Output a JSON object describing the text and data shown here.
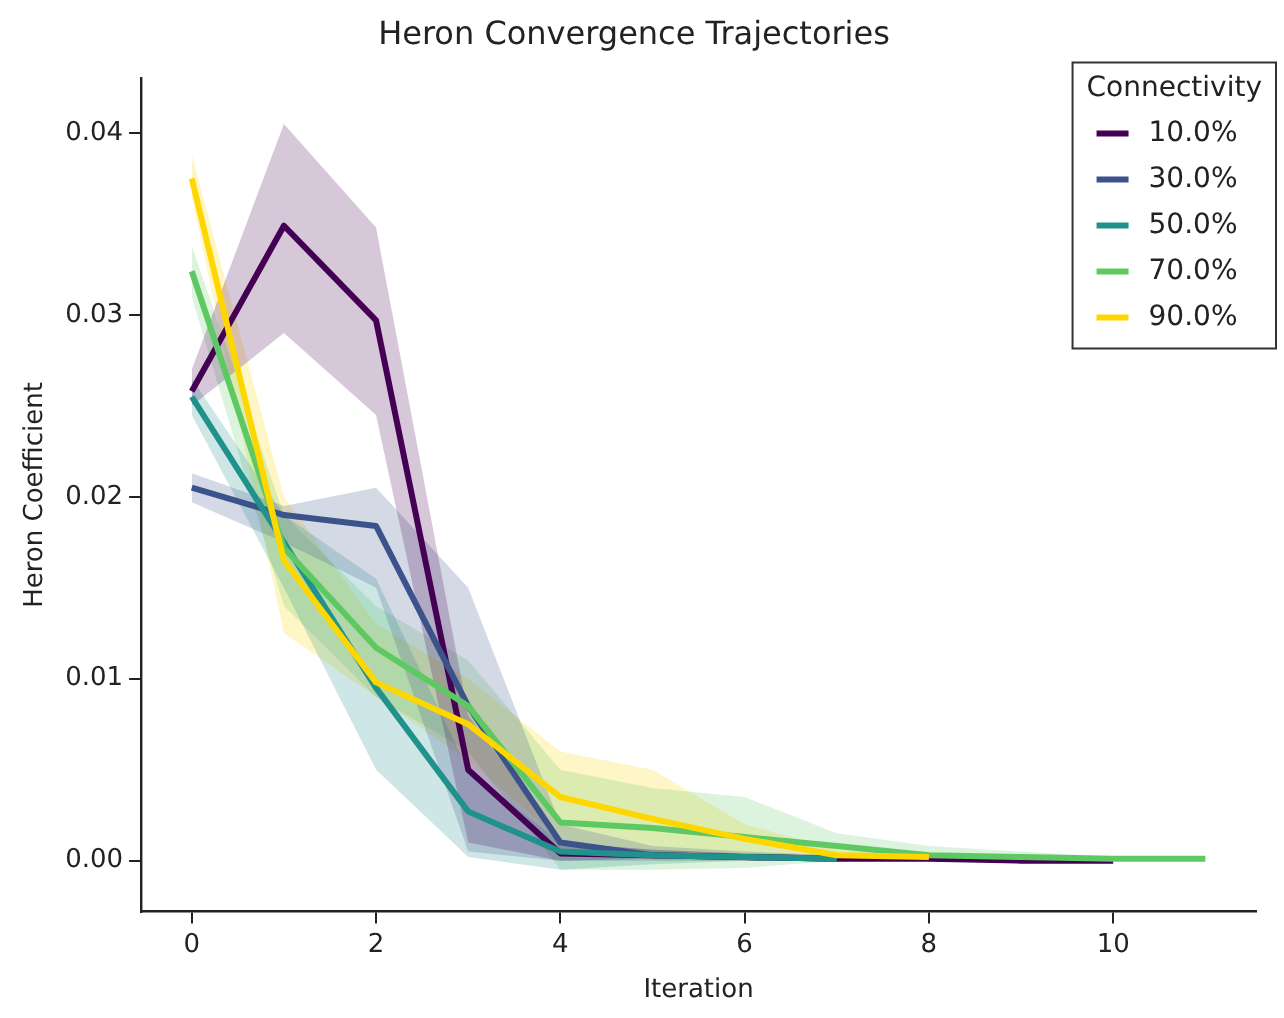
{
  "chart_data": {
    "type": "line",
    "title": "Heron Convergence Trajectories",
    "xlabel": "Iteration",
    "ylabel": "Heron Coefficient",
    "legend_title": "Connectivity",
    "legend": "top right",
    "grid": false,
    "marker": "none",
    "line_style": "solid",
    "xlim": [
      -0.55,
      11.55
    ],
    "xticks": [
      0,
      2,
      4,
      6,
      8,
      10
    ],
    "ylim": [
      -0.0028,
      0.043
    ],
    "yticks": [
      {
        "value": 0,
        "label": "0.00"
      },
      {
        "value": 0.01,
        "label": "0.01"
      },
      {
        "value": 0.02,
        "label": "0.02"
      },
      {
        "value": 0.03,
        "label": "0.03"
      },
      {
        "value": 0.04,
        "label": "0.04"
      }
    ],
    "series": [
      {
        "name": "10.0%",
        "color": "#440154",
        "x": [
          0,
          1,
          2,
          3,
          4,
          5,
          6,
          7,
          8,
          9,
          10
        ],
        "values": [
          0.0258,
          0.0349,
          0.0297,
          0.005,
          0.0004,
          0.0003,
          null,
          0.0001,
          0.0001,
          0,
          0
        ],
        "lower": [
          0.025,
          0.029,
          0.0245,
          0.001,
          0,
          0.0001,
          0.0001,
          0,
          0,
          0,
          0
        ],
        "upper": [
          0.027,
          0.0405,
          0.0348,
          0.008,
          0.001,
          0.0006,
          0.0004,
          0.0003,
          0.0002,
          0.0001,
          0.0001
        ]
      },
      {
        "name": "30.0%",
        "color": "#3b528b",
        "x": [
          0,
          1,
          2,
          3,
          4,
          5,
          6,
          7
        ],
        "values": [
          0.0205,
          0.019,
          0.0184,
          0.0085,
          0.001,
          0.0003,
          0.0002,
          0.0001
        ],
        "lower": [
          0.0197,
          0.0175,
          0.015,
          0.0005,
          0,
          0,
          0,
          0
        ],
        "upper": [
          0.0213,
          0.0195,
          0.0205,
          0.015,
          0.002,
          0.0008,
          0.0005,
          0.0003
        ]
      },
      {
        "name": "50.0%",
        "color": "#21918c",
        "x": [
          0,
          1,
          2,
          3,
          4,
          5,
          6,
          7
        ],
        "values": [
          0.0255,
          0.0175,
          0.0095,
          0.0027,
          0.0005,
          0.0003,
          0.0002,
          0.0001
        ],
        "lower": [
          0.0245,
          0.015,
          0.005,
          0.0002,
          -0.0005,
          -0.0002,
          0,
          0
        ],
        "upper": [
          0.0265,
          0.019,
          0.0155,
          0.005,
          0.001,
          0.0006,
          0.0004,
          0.0002
        ]
      },
      {
        "name": "70.0%",
        "color": "#5ec962",
        "x": [
          0,
          1,
          2,
          3,
          4,
          5,
          6,
          7,
          8,
          9,
          10,
          11
        ],
        "values": [
          0.0324,
          0.0172,
          0.0117,
          0.0085,
          0.0021,
          0.0018,
          0.0013,
          0.0008,
          0.0003,
          0.0002,
          0.0001,
          0.0001
        ],
        "lower": [
          0.031,
          0.014,
          0.009,
          0.006,
          -0.0005,
          -0.0005,
          -0.0004,
          0,
          0,
          0,
          0,
          0
        ],
        "upper": [
          0.0338,
          0.019,
          0.014,
          0.011,
          0.005,
          0.004,
          0.0035,
          0.0015,
          0.0008,
          0.0005,
          0.0002,
          0.0001
        ]
      },
      {
        "name": "90.0%",
        "color": "#ffd700",
        "x": [
          0,
          1,
          2,
          3,
          4,
          5,
          6,
          7,
          8
        ],
        "values": [
          0.0375,
          0.0165,
          0.0098,
          0.0075,
          0.0035,
          0.0023,
          0.0012,
          0.0003,
          0.0002
        ],
        "lower": [
          0.0365,
          0.0125,
          0.009,
          0.0055,
          0.0012,
          0,
          0,
          0,
          0
        ],
        "upper": [
          0.0388,
          0.02,
          0.013,
          0.01,
          0.006,
          0.005,
          0.002,
          0.0006,
          0.0003
        ]
      }
    ]
  }
}
